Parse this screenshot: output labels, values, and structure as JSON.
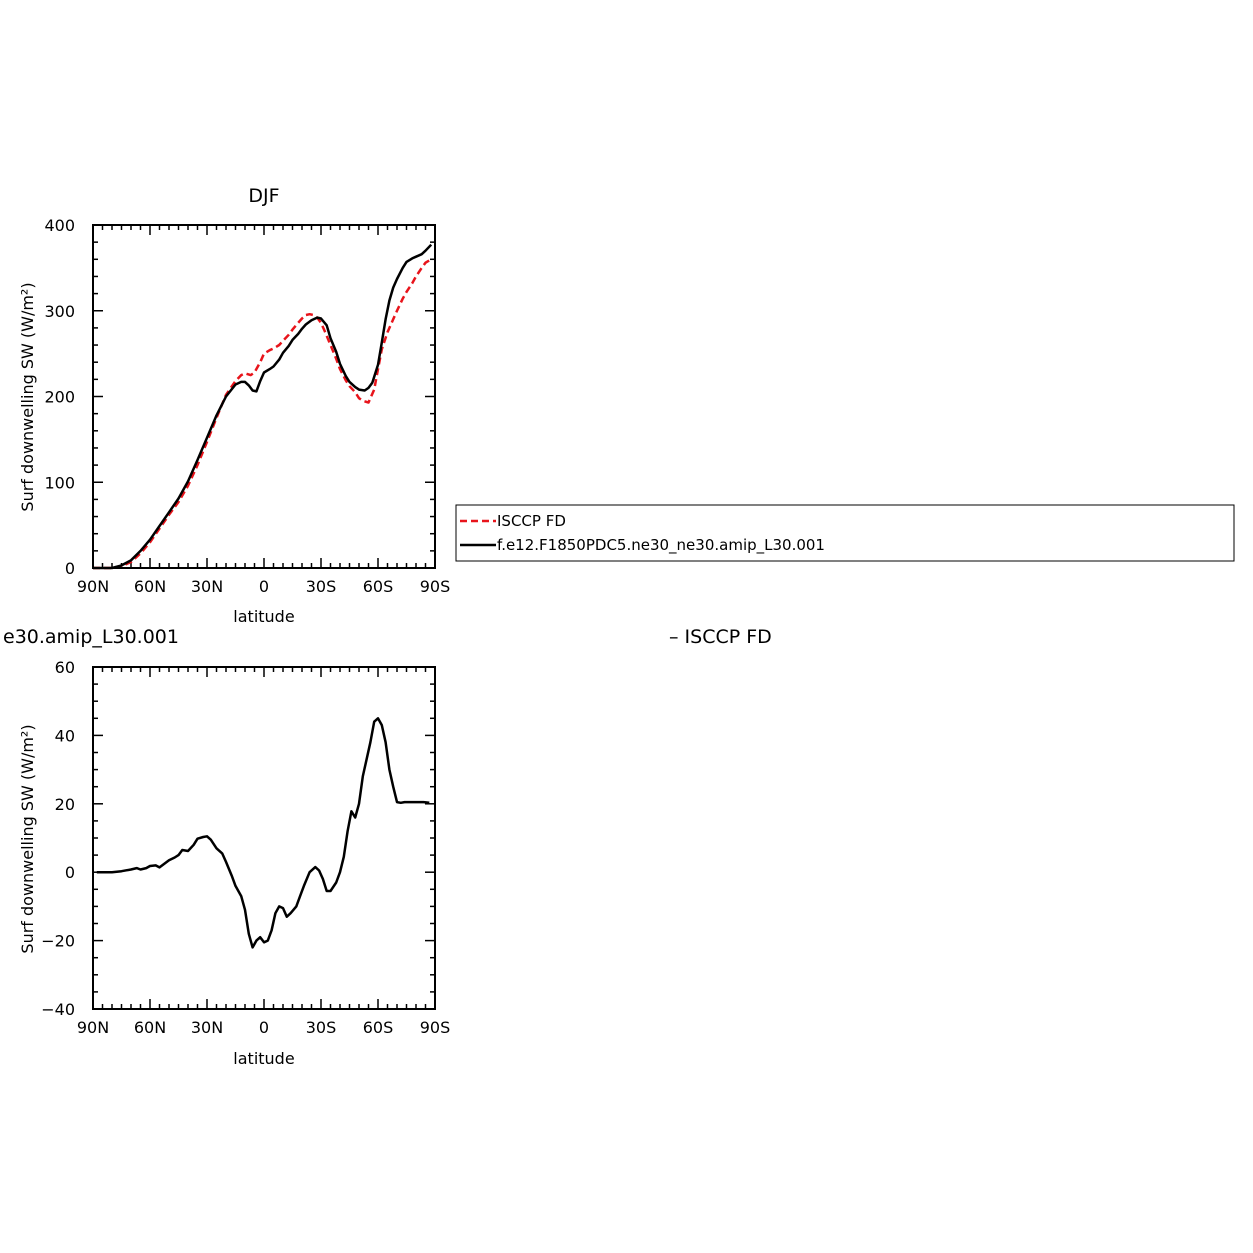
{
  "colors": {
    "isccp": "#e8141b",
    "model": "#000000",
    "background": "#ffffff"
  },
  "legend": {
    "entries": [
      {
        "label": "ISCCP FD",
        "style": "dashed",
        "color": "#e8141b"
      },
      {
        "label": "f.e12.F1850PDC5.ne30_ne30.amip_L30.001",
        "style": "solid",
        "color": "#000000"
      }
    ]
  },
  "chart_data": [
    {
      "type": "line",
      "title": "DJF",
      "xlabel": "latitude",
      "ylabel": "Surf downwelling SW (W/m²)",
      "xlim": [
        -90,
        90
      ],
      "ylim": [
        0,
        400
      ],
      "x_tick_values": [
        -90,
        -60,
        -30,
        0,
        30,
        60,
        90
      ],
      "x_tick_labels": [
        "90N",
        "60N",
        "30N",
        "0",
        "30S",
        "60S",
        "90S"
      ],
      "y_tick_values": [
        0,
        100,
        200,
        300,
        400
      ],
      "y_tick_labels": [
        "0",
        "100",
        "200",
        "300",
        "400"
      ],
      "grid": false,
      "series": [
        {
          "name": "ISCCP FD",
          "style": "dashed",
          "color": "#e8141b",
          "x": [
            -90,
            -85,
            -80,
            -75,
            -70,
            -65,
            -60,
            -55,
            -50,
            -45,
            -40,
            -35,
            -30,
            -25,
            -20,
            -15,
            -12,
            -10,
            -7,
            -5,
            -2,
            0,
            3,
            5,
            8,
            10,
            13,
            15,
            18,
            20,
            22,
            24,
            26,
            28,
            30,
            32,
            35,
            38,
            40,
            43,
            45,
            48,
            50,
            52,
            55,
            58,
            60,
            62,
            65,
            68,
            70,
            73,
            75,
            78,
            80,
            83,
            85,
            88
          ],
          "y": [
            0,
            0,
            0,
            2,
            7,
            17,
            30,
            46,
            62,
            77,
            96,
            120,
            147,
            175,
            202,
            218,
            225,
            227,
            225,
            228,
            240,
            250,
            254,
            256,
            260,
            265,
            272,
            278,
            286,
            291,
            295,
            296,
            295,
            292,
            286,
            276,
            260,
            244,
            232,
            219,
            212,
            205,
            198,
            195,
            193,
            208,
            232,
            255,
            275,
            290,
            300,
            314,
            322,
            332,
            340,
            350,
            356,
            360
          ]
        },
        {
          "name": "f.e12.F1850PDC5.ne30_ne30.amip_L30.001",
          "style": "solid",
          "color": "#000000",
          "x": [
            -90,
            -85,
            -80,
            -75,
            -70,
            -65,
            -60,
            -55,
            -50,
            -45,
            -40,
            -35,
            -30,
            -25,
            -20,
            -15,
            -12,
            -10,
            -8,
            -6,
            -4,
            -2,
            0,
            3,
            5,
            8,
            10,
            13,
            15,
            18,
            20,
            22,
            25,
            28,
            30,
            33,
            35,
            38,
            40,
            43,
            45,
            48,
            50,
            53,
            55,
            57,
            60,
            62,
            64,
            66,
            68,
            70,
            73,
            75,
            78,
            80,
            83,
            85,
            88
          ],
          "y": [
            0,
            0,
            0,
            3,
            9,
            20,
            33,
            49,
            65,
            81,
            101,
            126,
            152,
            178,
            200,
            214,
            217,
            217,
            213,
            207,
            206,
            218,
            228,
            232,
            235,
            243,
            251,
            259,
            266,
            273,
            279,
            284,
            289,
            292,
            291,
            283,
            268,
            252,
            238,
            224,
            217,
            211,
            208,
            207,
            210,
            216,
            237,
            263,
            290,
            312,
            327,
            337,
            350,
            357,
            361,
            363,
            366,
            370,
            377
          ]
        }
      ]
    },
    {
      "type": "line",
      "title": "e30.amip_L30.001",
      "right_title": "– ISCCP FD",
      "xlabel": "latitude",
      "ylabel": "Surf downwelling SW (W/m²)",
      "xlim": [
        -90,
        90
      ],
      "ylim": [
        -40,
        60
      ],
      "x_tick_values": [
        -90,
        -60,
        -30,
        0,
        30,
        60,
        90
      ],
      "x_tick_labels": [
        "90N",
        "60N",
        "30N",
        "0",
        "30S",
        "60S",
        "90S"
      ],
      "y_tick_values": [
        -40,
        -20,
        0,
        20,
        40,
        60
      ],
      "y_tick_labels": [
        "−40",
        "−20",
        "0",
        "20",
        "40",
        "60"
      ],
      "grid": false,
      "series": [
        {
          "style": "solid",
          "color": "#000000",
          "x": [
            -88,
            -85,
            -80,
            -75,
            -70,
            -67,
            -65,
            -62,
            -60,
            -57,
            -55,
            -50,
            -47,
            -45,
            -43,
            -40,
            -37,
            -35,
            -32,
            -30,
            -28,
            -25,
            -22,
            -20,
            -17,
            -15,
            -12,
            -10,
            -8,
            -6,
            -4,
            -2,
            0,
            2,
            4,
            6,
            8,
            10,
            12,
            14,
            17,
            19,
            21,
            24,
            27,
            29,
            31,
            33,
            35,
            38,
            40,
            42,
            44,
            46,
            48,
            50,
            52,
            54,
            56,
            58,
            60,
            62,
            64,
            66,
            68,
            70,
            72,
            74,
            76,
            78,
            80,
            82,
            84,
            87
          ],
          "y": [
            0,
            0,
            0,
            0.3,
            0.8,
            1.2,
            0.8,
            1.2,
            1.8,
            2,
            1.4,
            3.5,
            4.3,
            5,
            6.5,
            6.2,
            8,
            9.8,
            10.3,
            10.5,
            9.5,
            7,
            5.5,
            3,
            -1,
            -4,
            -7,
            -11,
            -18,
            -22,
            -20,
            -19,
            -20.5,
            -20,
            -17,
            -12,
            -10,
            -10.5,
            -13,
            -12,
            -10,
            -7,
            -4,
            0,
            1.5,
            0.5,
            -2,
            -5.5,
            -5.5,
            -3,
            0,
            4.5,
            12,
            17.8,
            16,
            20,
            28,
            33,
            38,
            44,
            45,
            43,
            38,
            30,
            25,
            20.5,
            20.3,
            20.5,
            20.5,
            20.5,
            20.5,
            20.5,
            20.5,
            20.3
          ]
        }
      ]
    }
  ]
}
